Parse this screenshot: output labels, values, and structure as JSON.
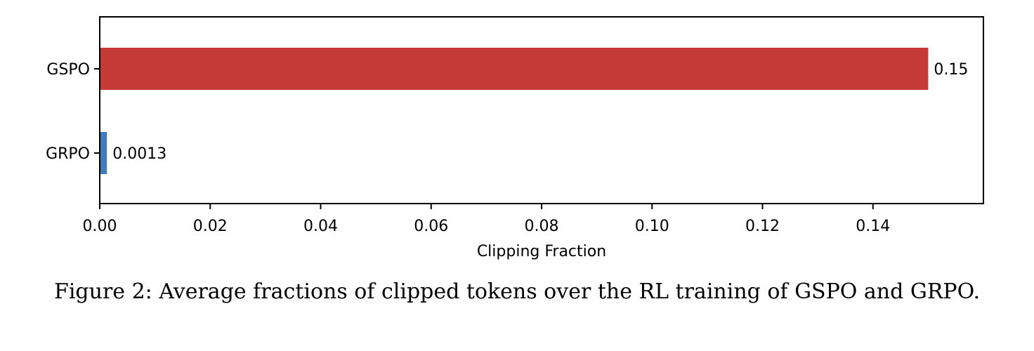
{
  "chart_data": {
    "type": "bar",
    "orientation": "horizontal",
    "categories": [
      "GSPO",
      "GRPO"
    ],
    "values": [
      0.15,
      0.0013
    ],
    "data_labels": [
      "0.15",
      "0.0013"
    ],
    "colors": [
      "#c53a36",
      "#3e7cbf"
    ],
    "xlabel": "Clipping Fraction",
    "ylabel": "",
    "xlim": [
      0,
      0.16
    ],
    "xticks": [
      0.0,
      0.02,
      0.04,
      0.06,
      0.08,
      0.1,
      0.12,
      0.14
    ],
    "xtick_labels": [
      "0.00",
      "0.02",
      "0.04",
      "0.06",
      "0.08",
      "0.10",
      "0.12",
      "0.14"
    ],
    "grid": false,
    "legend": "none"
  },
  "caption": "Figure 2: Average fractions of clipped tokens over the RL training of GSPO and GRPO."
}
